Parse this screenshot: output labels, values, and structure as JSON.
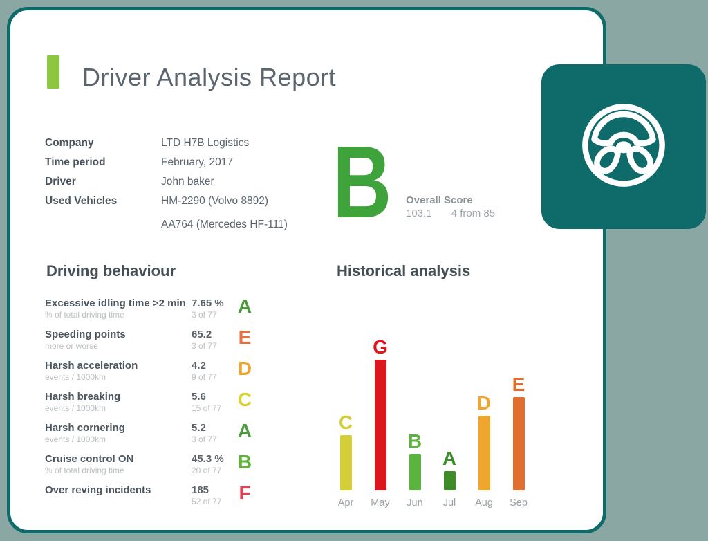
{
  "theme": {
    "background": "#8ba7a4",
    "card_border": "#0f6b69",
    "tile_color": "#0e6b69",
    "accent_green": "#8dc63f"
  },
  "report": {
    "title": "Driver Analysis Report",
    "info": {
      "rows": [
        {
          "label": "Company",
          "value": "LTD H7B Logistics"
        },
        {
          "label": "Time period",
          "value": "February, 2017"
        },
        {
          "label": "Driver",
          "value": "John baker"
        },
        {
          "label": "Used Vehicles",
          "value": "HM-2290 (Volvo 8892)"
        },
        {
          "label": "",
          "value": "AA764 (Mercedes HF-111)"
        }
      ]
    },
    "overall": {
      "grade": "B",
      "grade_color": "#3fa33b",
      "label": "Overall Score",
      "score": "103.1",
      "rank": "4 from 85"
    },
    "behaviour": {
      "heading": "Driving behaviour",
      "rows": [
        {
          "label": "Excessive idling time >2 min",
          "sublabel": "% of total driving time",
          "value": "7.65 %",
          "subvalue": "3 of 77",
          "grade": "A",
          "grade_color": "#4c9c3d"
        },
        {
          "label": "Speeding points",
          "sublabel": "more or worse",
          "value": "65.2",
          "subvalue": "3 of 77",
          "grade": "E",
          "grade_color": "#e86f3e"
        },
        {
          "label": "Harsh acceleration",
          "sublabel": "events / 1000km",
          "value": "4.2",
          "subvalue": "9 of 77",
          "grade": "D",
          "grade_color": "#f0a52f"
        },
        {
          "label": "Harsh breaking",
          "sublabel": "events / 1000km",
          "value": "5.6",
          "subvalue": "15 of 77",
          "grade": "C",
          "grade_color": "#dbd334"
        },
        {
          "label": "Harsh cornering",
          "sublabel": "events / 1000km",
          "value": "5.2",
          "subvalue": "3 of 77",
          "grade": "A",
          "grade_color": "#4c9c3d"
        },
        {
          "label": "Cruise control ON",
          "sublabel": "% of total driving time",
          "value": "45.3 %",
          "subvalue": "20 of 77",
          "grade": "B",
          "grade_color": "#5eb43b"
        },
        {
          "label": "Over reving incidents",
          "sublabel": "",
          "value": "185",
          "subvalue": "52 of 77",
          "grade": "F",
          "grade_color": "#e63e52"
        }
      ]
    },
    "historical": {
      "heading": "Historical analysis"
    }
  },
  "chart_data": {
    "type": "bar",
    "title": "Historical analysis",
    "categories": [
      "Apr",
      "May",
      "Jun",
      "Jul",
      "Aug",
      "Sep"
    ],
    "series": [
      {
        "name": "monthly-driving-grade-bar-height",
        "values": [
          80,
          189,
          53,
          28,
          108,
          135
        ]
      }
    ],
    "grades": [
      "C",
      "G",
      "B",
      "A",
      "D",
      "E"
    ],
    "colors": [
      "#d4cf39",
      "#dc161d",
      "#5ab43e",
      "#3e8b2a",
      "#f0a52f",
      "#e16d2e"
    ],
    "xlabel": "",
    "ylabel": "",
    "legend": false,
    "grid": false
  },
  "tile": {
    "icon": "steering-wheel"
  }
}
